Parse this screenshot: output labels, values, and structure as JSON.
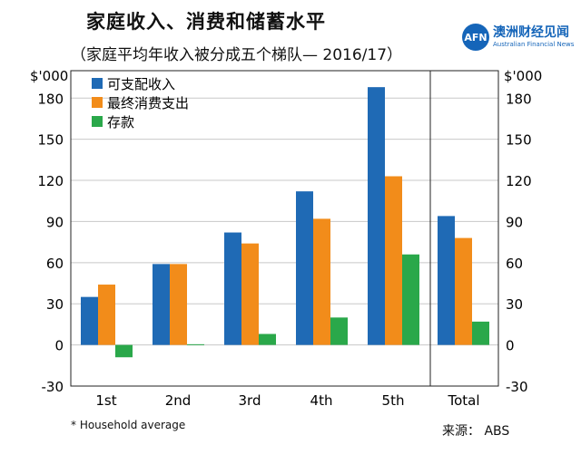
{
  "title": "家庭收入、消费和储蓄水平",
  "subtitle": "（家庭平均年收入被分成五个梯队— 2016/17）",
  "brand": {
    "logo_text": "AFN",
    "name": "澳洲财经见闻",
    "english": "Australian Financial News",
    "color": "#1565b9"
  },
  "footnote": "*    Household average",
  "source": "来源： ABS",
  "chart_data": {
    "type": "bar",
    "unit_label_left": "$'000",
    "unit_label_right": "$'000",
    "categories": [
      "1st",
      "2nd",
      "3rd",
      "4th",
      "5th",
      "Total"
    ],
    "series": [
      {
        "name": "可支配收入",
        "color": "#1f6ab5",
        "values": [
          35,
          59,
          82,
          112,
          188,
          94
        ]
      },
      {
        "name": "最终消费支出",
        "color": "#f28c1a",
        "values": [
          44,
          59,
          74,
          92,
          123,
          78
        ]
      },
      {
        "name": "存款",
        "color": "#2aa84a",
        "values": [
          -9,
          0.5,
          8,
          20,
          66,
          17
        ]
      }
    ],
    "ylim": [
      -30,
      200
    ],
    "yticks": [
      -30,
      0,
      30,
      60,
      90,
      120,
      150,
      180
    ],
    "legend_position": "top-left",
    "grid": "horizontal"
  }
}
